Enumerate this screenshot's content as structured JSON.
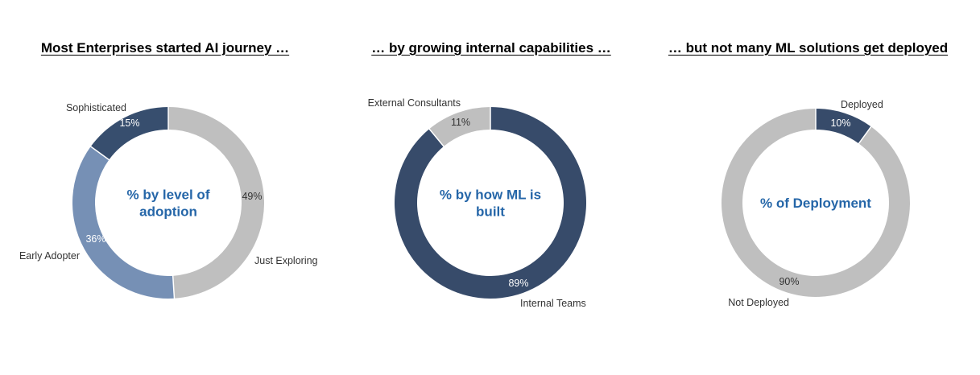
{
  "chart_data": [
    {
      "type": "pie",
      "title": "Most Enterprises started AI journey …",
      "center_label": [
        "% by level of",
        "adoption"
      ],
      "categories": [
        "Just Exploring",
        "Early Adopter",
        "Sophisticated"
      ],
      "values": [
        49,
        36,
        15
      ],
      "value_labels": [
        "49%",
        "36%",
        "15%"
      ],
      "colors": [
        "#bfbfbf",
        "#7690b5",
        "#374e6e"
      ],
      "label_colors": [
        "#333333",
        "#ffffff",
        "#ffffff"
      ]
    },
    {
      "type": "pie",
      "title": "… by growing internal capabilities …",
      "center_label": [
        "% by how ML is",
        "built"
      ],
      "categories": [
        "Internal Teams",
        "External Consultants"
      ],
      "values": [
        89,
        11
      ],
      "value_labels": [
        "89%",
        "11%"
      ],
      "colors": [
        "#374b6a",
        "#bfbfbf"
      ],
      "label_colors": [
        "#ffffff",
        "#333333"
      ]
    },
    {
      "type": "pie",
      "title": "… but not many ML solutions get deployed",
      "center_label": [
        "% of Deployment"
      ],
      "categories": [
        "Deployed",
        "Not Deployed"
      ],
      "values": [
        10,
        90
      ],
      "value_labels": [
        "10%",
        "90%"
      ],
      "colors": [
        "#374b6a",
        "#bfbfbf"
      ],
      "label_colors": [
        "#ffffff",
        "#333333"
      ]
    }
  ]
}
